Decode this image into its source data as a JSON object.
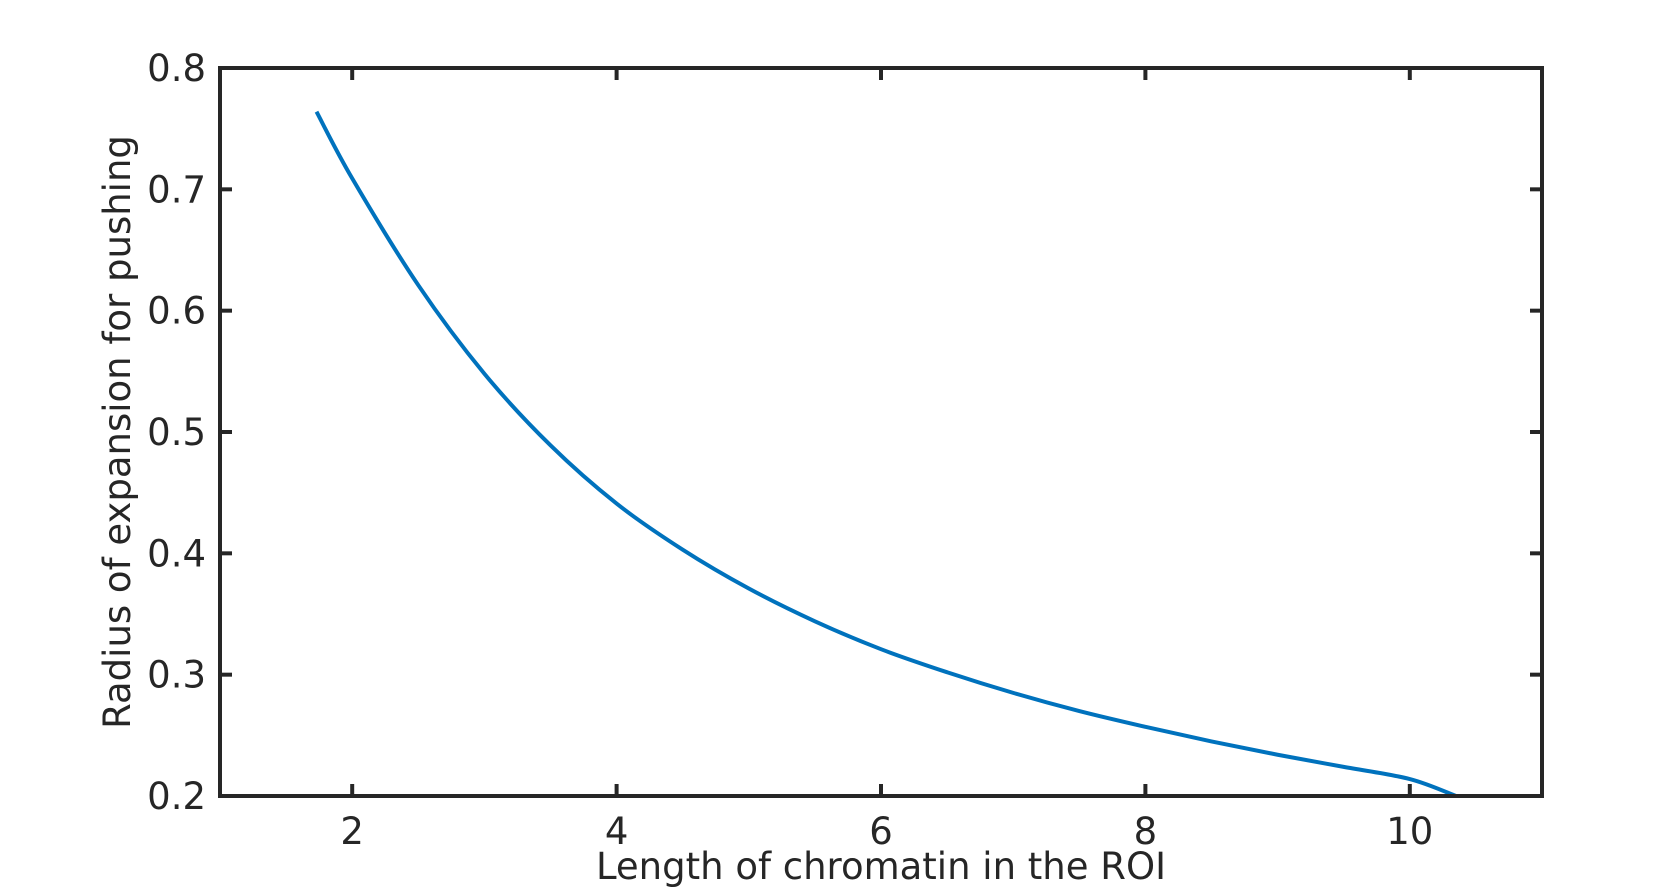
{
  "chart_data": {
    "type": "line",
    "title": "",
    "xlabel": "Length of chromatin in the ROI",
    "ylabel": "Radius of expansion for pushing",
    "xlim": [
      1,
      11
    ],
    "ylim": [
      0.2,
      0.8
    ],
    "xticks": [
      2,
      4,
      6,
      8,
      10
    ],
    "yticks": [
      0.2,
      0.3,
      0.4,
      0.5,
      0.6,
      0.7,
      0.8
    ],
    "xtick_labels": [
      "2",
      "4",
      "6",
      "8",
      "10"
    ],
    "ytick_labels": [
      "0.2",
      "0.3",
      "0.4",
      "0.5",
      "0.6",
      "0.7",
      "0.8"
    ],
    "grid": false,
    "legend": "none",
    "box": true,
    "colors": {
      "line": "#0072BD",
      "axes": "#262626",
      "background": "#ffffff"
    },
    "series": [
      {
        "x": [
          1.73,
          2,
          2.5,
          3,
          3.5,
          4,
          4.5,
          5,
          5.5,
          6,
          6.5,
          7,
          7.5,
          8,
          8.5,
          9,
          9.5,
          10,
          10.35
        ],
        "y": [
          0.764,
          0.709,
          0.621,
          0.548,
          0.489,
          0.441,
          0.403,
          0.371,
          0.344,
          0.321,
          0.302,
          0.285,
          0.27,
          0.257,
          0.245,
          0.234,
          0.224,
          0.214,
          0.2
        ]
      }
    ]
  }
}
